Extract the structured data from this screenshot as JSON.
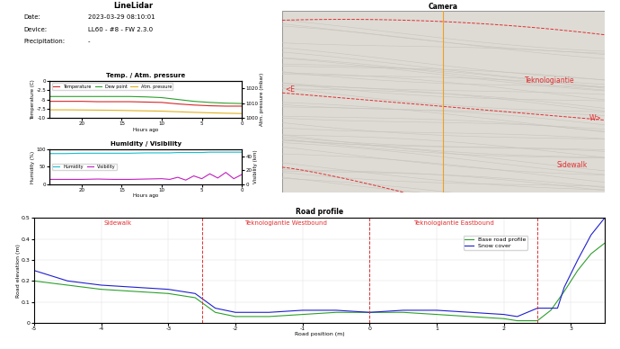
{
  "header": {
    "title": "LineLidar",
    "rows": [
      [
        "Date:",
        "2023-03-29 08:10:01"
      ],
      [
        "Device:",
        "LL60 - #8 - FW 2.3.0"
      ],
      [
        "Precipitation:",
        "-"
      ]
    ]
  },
  "camera": {
    "title": "Camera",
    "labels": [
      "Teknologiantie",
      "<E",
      "W>",
      "Sidewalk"
    ]
  },
  "chart_data": [
    {
      "type": "line",
      "title": "Temp. / Atm. pressure",
      "xlabel": "Hours ago",
      "ylabel": "Temperature (C)",
      "y2label": "Atm. pressure (mbar)",
      "x": [
        24,
        22,
        20,
        18,
        16,
        14,
        12,
        10,
        8,
        6,
        4,
        2,
        0
      ],
      "xlim": [
        24,
        0
      ],
      "xticks": [
        20,
        15,
        10,
        5,
        0
      ],
      "ylim": [
        -10,
        0
      ],
      "yticks": [
        -10,
        -7.5,
        -5,
        -2.5,
        0
      ],
      "y2lim": [
        1000,
        1025
      ],
      "y2ticks": [
        1000,
        1010,
        1020
      ],
      "legend": "upper left",
      "series": [
        {
          "name": "Temperature",
          "color": "#d62728",
          "values": [
            -5.5,
            -5.5,
            -5.5,
            -5.6,
            -5.6,
            -5.6,
            -5.7,
            -5.8,
            -6.2,
            -6.5,
            -6.7,
            -6.8,
            -6.8
          ]
        },
        {
          "name": "Dew point",
          "color": "#2ca02c",
          "values": [
            -4.2,
            -4.2,
            -4.2,
            -4.2,
            -4.2,
            -4.2,
            -4.3,
            -4.5,
            -5.0,
            -5.5,
            -5.8,
            -6.0,
            -6.1
          ]
        },
        {
          "name": "Atm. pressure",
          "color": "#e0b020",
          "axis": "y2",
          "values": [
            1005.5,
            1005.5,
            1005.4,
            1005.3,
            1005.2,
            1005.0,
            1004.8,
            1004.6,
            1004.2,
            1003.8,
            1003.5,
            1003.2,
            1003.0
          ]
        }
      ]
    },
    {
      "type": "line",
      "title": "Humidity / Visibility",
      "xlabel": "Hours ago",
      "ylabel": "Humidity (%)",
      "y2label": "Visibility (km)",
      "x": [
        24,
        22,
        20,
        18,
        16,
        14,
        12,
        10,
        9,
        8,
        7,
        6,
        5,
        4,
        3,
        2,
        1,
        0
      ],
      "xlim": [
        24,
        0
      ],
      "xticks": [
        20,
        15,
        10,
        5,
        0
      ],
      "ylim": [
        0,
        100
      ],
      "yticks": [
        0,
        50,
        100
      ],
      "y2lim": [
        0,
        50
      ],
      "y2ticks": [
        0,
        20,
        40
      ],
      "legend": "center left",
      "series": [
        {
          "name": "Humidity",
          "color": "#17becf",
          "values": [
            88,
            88,
            89,
            89,
            89,
            89,
            90,
            90,
            90,
            91,
            91,
            91,
            91,
            92,
            92,
            92,
            92,
            92
          ]
        },
        {
          "name": "Visibility",
          "color": "#c020c0",
          "axis": "y2",
          "values": [
            7,
            7,
            7,
            7.5,
            7,
            7,
            7.5,
            8,
            7,
            10,
            6,
            12,
            8,
            15,
            9,
            17,
            8,
            14
          ]
        }
      ]
    },
    {
      "type": "line",
      "title": "Road profile",
      "xlabel": "Road position (m)",
      "ylabel": "Road elevation (m)",
      "xlim": [
        -5,
        3.5
      ],
      "xticks": [
        -5,
        -4,
        -3,
        -2,
        -1,
        0,
        1,
        2,
        3
      ],
      "ylim": [
        0,
        0.5
      ],
      "yticks": [
        0,
        0.1,
        0.2,
        0.3,
        0.4,
        0.5
      ],
      "grid": true,
      "legend": "upper right",
      "sections": [
        {
          "name": "Sidewalk",
          "start": -5,
          "end": -2.5
        },
        {
          "name": "Teknologiantie Westbound",
          "start": -2.5,
          "end": 0
        },
        {
          "name": "Teknologiantie Eastbound",
          "start": 0,
          "end": 2.5
        }
      ],
      "series": [
        {
          "name": "Base road profile",
          "color": "#2ca02c",
          "x": [
            -5,
            -4.5,
            -4,
            -3.5,
            -3,
            -2.6,
            -2.3,
            -2,
            -1.5,
            -1,
            -0.5,
            0,
            0.5,
            1,
            1.5,
            2,
            2.2,
            2.5,
            2.7,
            2.9,
            3.1,
            3.3,
            3.5
          ],
          "values": [
            0.2,
            0.18,
            0.16,
            0.15,
            0.14,
            0.12,
            0.05,
            0.03,
            0.03,
            0.04,
            0.05,
            0.05,
            0.05,
            0.04,
            0.03,
            0.02,
            0.01,
            0.01,
            0.06,
            0.15,
            0.25,
            0.33,
            0.38
          ]
        },
        {
          "name": "Snow cover",
          "color": "#1f1fd0",
          "x": [
            -5,
            -4.5,
            -4,
            -3.5,
            -3,
            -2.6,
            -2.3,
            -2,
            -1.5,
            -1,
            -0.5,
            0,
            0.5,
            1,
            1.5,
            2,
            2.2,
            2.5,
            2.8,
            2.9,
            3.1,
            3.3,
            3.5
          ],
          "values": [
            0.25,
            0.2,
            0.18,
            0.17,
            0.16,
            0.14,
            0.07,
            0.05,
            0.05,
            0.06,
            0.06,
            0.05,
            0.06,
            0.06,
            0.05,
            0.04,
            0.03,
            0.07,
            0.07,
            0.17,
            0.3,
            0.42,
            0.5
          ]
        }
      ]
    }
  ]
}
